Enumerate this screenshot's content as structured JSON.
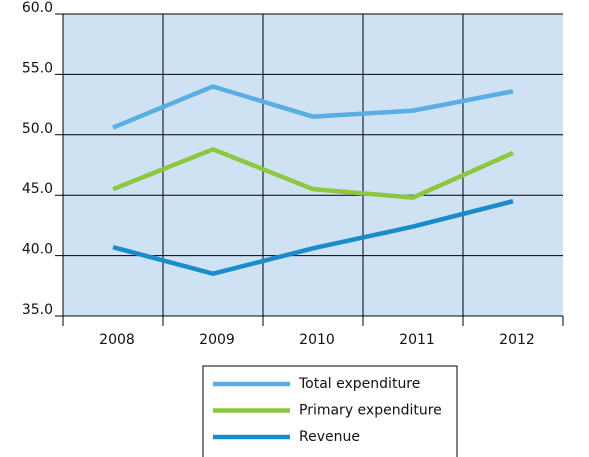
{
  "chart_data": {
    "type": "line",
    "categories": [
      "2008",
      "2009",
      "2010",
      "2011",
      "2012"
    ],
    "series": [
      {
        "name": "Total expenditure",
        "color": "#5aaee3",
        "values": [
          50.6,
          54.0,
          51.5,
          52.0,
          53.6
        ]
      },
      {
        "name": "Primary expenditure",
        "color": "#8dc63f",
        "values": [
          45.5,
          48.8,
          45.5,
          44.8,
          48.5
        ]
      },
      {
        "name": "Revenue",
        "color": "#1a8ccc",
        "values": [
          40.7,
          38.5,
          40.6,
          42.4,
          44.5
        ]
      }
    ],
    "ylim": [
      35,
      60
    ],
    "yticks": [
      {
        "value": 35,
        "label": "35.0"
      },
      {
        "value": 40,
        "label": "40.0"
      },
      {
        "value": 45,
        "label": "45.0"
      },
      {
        "value": 50,
        "label": "50.0"
      },
      {
        "value": 55,
        "label": "55.0"
      },
      {
        "value": 60,
        "label": "60.0"
      }
    ],
    "grid": true,
    "legend": "bottom"
  }
}
